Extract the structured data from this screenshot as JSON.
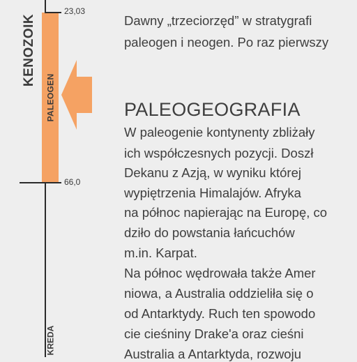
{
  "timeline": {
    "era": "KENOZOIK",
    "period": "PALEOGEN",
    "period_below": "KREDA",
    "date_top": "23,03",
    "date_bottom": "66,0",
    "bar_color": "#f5a263",
    "arrow_color": "#f5a263"
  },
  "intro_lines": [
    "Dawny „trzeciorzęd” w stratygrafi",
    "paleogen i neogen. Po raz pierwszy"
  ],
  "section": {
    "heading": "PALEOGEOGRAFIA",
    "lines": [
      "W paleogenie kontynenty zbliżały",
      "ich współczesnych pozycji. Doszł",
      "Dekanu z Azją, w wyniku której",
      "wypiętrzenia Himalajów. Afryka",
      "na północ napierając na Europę, co",
      "dziło do powstania łańcuchów",
      "m.in. Karpat.",
      "Na północ wędrowała także Amer",
      "niowa, a Australia oddzieliła się o",
      "od Antarktydy. Ruch ten spowodo",
      "cie cieśniny Drake'a oraz cieśni",
      "Australia a Antarktyda, rozwoju"
    ]
  }
}
